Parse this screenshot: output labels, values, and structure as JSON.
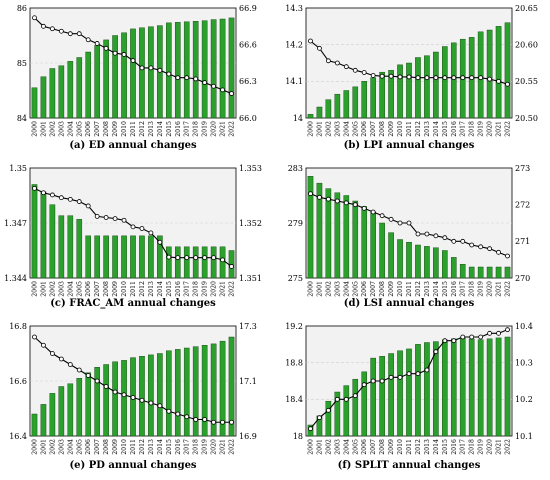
{
  "years": [
    "2000",
    "2001",
    "2002",
    "2003",
    "2004",
    "2005",
    "2006",
    "2007",
    "2008",
    "2009",
    "2010",
    "2011",
    "2012",
    "2013",
    "2014",
    "2015",
    "2016",
    "2017",
    "2018",
    "2019",
    "2020",
    "2021",
    "2022"
  ],
  "chart_data": [
    {
      "type": "bar+line",
      "caption": "(a) ED annual changes",
      "left_ticks": [
        "84",
        "85",
        "86"
      ],
      "right_ticks": [
        "66.0",
        "66.3",
        "66.6",
        "66.9"
      ],
      "left_range": [
        84,
        86
      ],
      "right_range": [
        66.0,
        66.9
      ],
      "bars": [
        84.55,
        84.75,
        84.9,
        84.95,
        85.03,
        85.1,
        85.2,
        85.32,
        85.42,
        85.5,
        85.55,
        85.62,
        85.64,
        85.66,
        85.68,
        85.73,
        85.74,
        85.75,
        85.76,
        85.77,
        85.79,
        85.8,
        85.82
      ],
      "line": [
        66.82,
        66.75,
        66.73,
        66.71,
        66.69,
        66.69,
        66.64,
        66.61,
        66.57,
        66.53,
        66.52,
        66.47,
        66.41,
        66.41,
        66.39,
        66.36,
        66.33,
        66.33,
        66.32,
        66.29,
        66.26,
        66.23,
        66.2
      ]
    },
    {
      "type": "bar+line",
      "caption": "(b) LPI annual changes",
      "left_ticks": [
        "14",
        "14.1",
        "14.2",
        "14.3"
      ],
      "right_ticks": [
        "20.50",
        "20.55",
        "20.60",
        "20.65"
      ],
      "left_range": [
        14.0,
        14.3
      ],
      "right_range": [
        20.5,
        20.65
      ],
      "bars": [
        14.01,
        14.03,
        14.05,
        14.065,
        14.075,
        14.085,
        14.1,
        14.11,
        14.125,
        14.13,
        14.145,
        14.15,
        14.165,
        14.17,
        14.18,
        14.195,
        14.205,
        14.215,
        14.22,
        14.235,
        14.24,
        14.25,
        14.26
      ],
      "line": [
        20.605,
        20.595,
        20.578,
        20.575,
        20.57,
        20.565,
        20.562,
        20.558,
        20.557,
        20.557,
        20.556,
        20.556,
        20.555,
        20.555,
        20.555,
        20.555,
        20.555,
        20.555,
        20.555,
        20.555,
        20.553,
        20.55,
        20.546
      ]
    },
    {
      "type": "bar+line",
      "caption": "(c) FRAC_AM annual changes",
      "left_ticks": [
        "1.344",
        "1.347",
        "1.35"
      ],
      "right_ticks": [
        "1.351",
        "1.352",
        "1.353"
      ],
      "left_range": [
        1.344,
        1.35
      ],
      "right_range": [
        1.351,
        1.353
      ],
      "bars": [
        1.3491,
        1.3487,
        1.348,
        1.3474,
        1.3474,
        1.3472,
        1.3463,
        1.3463,
        1.3463,
        1.3463,
        1.3463,
        1.3463,
        1.3463,
        1.3463,
        1.3463,
        1.3457,
        1.3457,
        1.3457,
        1.3457,
        1.3457,
        1.3457,
        1.3457,
        1.3455
      ],
      "line": [
        1.35263,
        1.35255,
        1.35251,
        1.35246,
        1.35243,
        1.35239,
        1.35231,
        1.35212,
        1.3521,
        1.35208,
        1.35205,
        1.35193,
        1.3519,
        1.35182,
        1.35165,
        1.35138,
        1.35137,
        1.35137,
        1.35137,
        1.35137,
        1.35137,
        1.35133,
        1.35121
      ]
    },
    {
      "type": "bar+line",
      "caption": "(d) LSI annual changes",
      "left_ticks": [
        "275",
        "279",
        "283"
      ],
      "right_ticks": [
        "270",
        "271",
        "272",
        "273"
      ],
      "left_range": [
        275,
        283
      ],
      "right_range": [
        270,
        273
      ],
      "bars": [
        282.4,
        281.9,
        281.5,
        281.2,
        281.0,
        280.6,
        280.2,
        279.8,
        279.0,
        278.3,
        277.8,
        277.6,
        277.4,
        277.3,
        277.2,
        277.0,
        276.5,
        276.0,
        275.8,
        275.8,
        275.8,
        275.8,
        275.8
      ],
      "line": [
        272.3,
        272.2,
        272.15,
        272.1,
        272.05,
        272.0,
        271.9,
        271.8,
        271.7,
        271.6,
        271.5,
        271.5,
        271.2,
        271.2,
        271.15,
        271.1,
        271.0,
        271.0,
        270.9,
        270.85,
        270.8,
        270.7,
        270.6
      ]
    },
    {
      "type": "bar+line",
      "caption": "(e) PD annual changes",
      "left_ticks": [
        "16.4",
        "16.6",
        "16.8"
      ],
      "right_ticks": [
        "16.9",
        "17.1",
        "17.3"
      ],
      "left_range": [
        16.4,
        16.8
      ],
      "right_range": [
        16.9,
        17.3
      ],
      "bars": [
        16.48,
        16.515,
        16.555,
        16.58,
        16.59,
        16.61,
        16.63,
        16.65,
        16.66,
        16.67,
        16.675,
        16.685,
        16.69,
        16.695,
        16.7,
        16.71,
        16.715,
        16.72,
        16.725,
        16.73,
        16.735,
        16.745,
        16.76
      ],
      "line": [
        17.26,
        17.23,
        17.2,
        17.18,
        17.16,
        17.14,
        17.12,
        17.1,
        17.08,
        17.06,
        17.05,
        17.04,
        17.03,
        17.02,
        17.01,
        16.99,
        16.98,
        16.97,
        16.96,
        16.96,
        16.95,
        16.95,
        16.95
      ]
    },
    {
      "type": "bar+line",
      "caption": "(f) SPLIT annual changes",
      "left_ticks": [
        "18",
        "18.4",
        "18.8",
        "19.2"
      ],
      "right_ticks": [
        "10.1",
        "10.2",
        "10.3",
        "10.4"
      ],
      "left_range": [
        18.0,
        19.2
      ],
      "right_range": [
        10.1,
        10.4
      ],
      "bars": [
        18.12,
        18.22,
        18.38,
        18.48,
        18.55,
        18.62,
        18.7,
        18.85,
        18.87,
        18.9,
        18.93,
        18.95,
        19.0,
        19.02,
        19.03,
        19.05,
        19.06,
        19.07,
        19.06,
        19.05,
        19.06,
        19.07,
        19.08
      ],
      "line": [
        10.12,
        10.15,
        10.17,
        10.2,
        10.2,
        10.21,
        10.24,
        10.25,
        10.25,
        10.26,
        10.26,
        10.27,
        10.27,
        10.28,
        10.33,
        10.36,
        10.36,
        10.37,
        10.37,
        10.37,
        10.38,
        10.38,
        10.39
      ]
    }
  ]
}
